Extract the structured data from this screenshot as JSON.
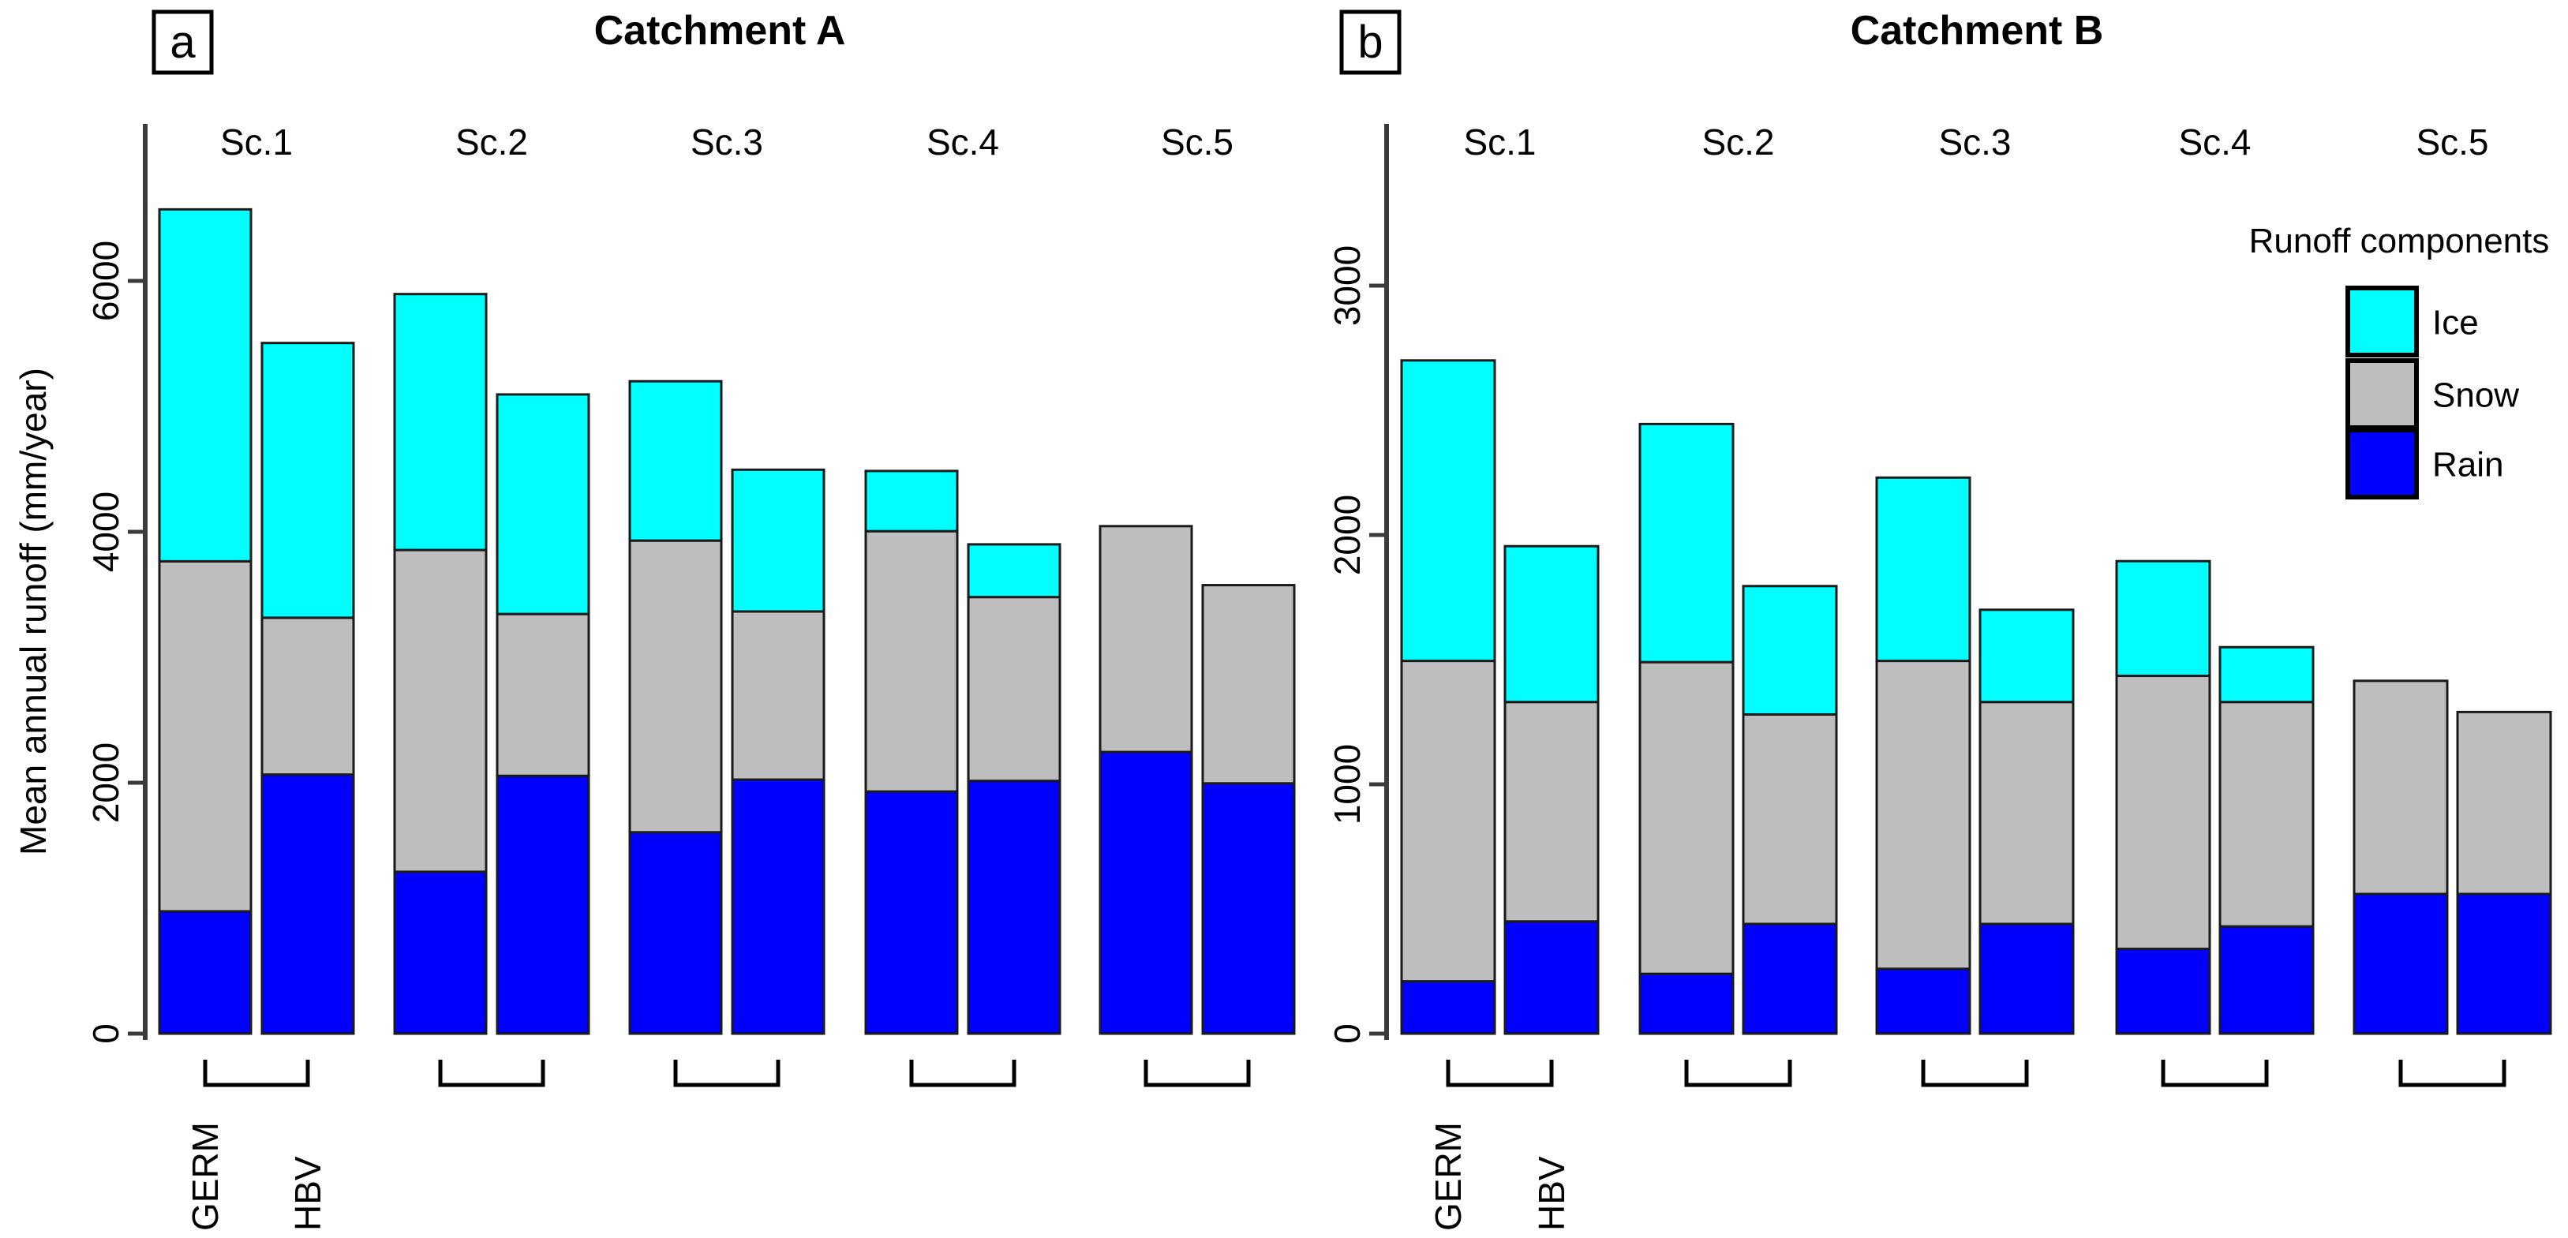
{
  "legend": {
    "title": "Runoff components",
    "items": [
      {
        "label": "Ice",
        "color": "#00ffff"
      },
      {
        "label": "Snow",
        "color": "#bebebe"
      },
      {
        "label": "Rain",
        "color": "#0000ff"
      }
    ]
  },
  "colors": {
    "ice": "#00ffff",
    "snow": "#bebebe",
    "rain": "#0000ff",
    "outline": "#1a1a1a",
    "axis": "#3a3a3a",
    "text": "#000000",
    "background": "#ffffff"
  },
  "chart_data": [
    {
      "type": "bar",
      "stacked": true,
      "panel_letter": "a",
      "title": "Catchment A",
      "ylabel": "Mean annual runoff (mm/year)",
      "ylim": [
        0,
        7250
      ],
      "yticks": [
        0,
        2000,
        4000,
        6000
      ],
      "grid": false,
      "legend_position": "none",
      "scenarios": [
        "Sc.1",
        "Sc.2",
        "Sc.3",
        "Sc.4",
        "Sc.5"
      ],
      "models": [
        "GERM",
        "HBV"
      ],
      "bar_labels": [
        "Sc.1 GERM",
        "Sc.1 HBV",
        "Sc.2 GERM",
        "Sc.2 HBV",
        "Sc.3 GERM",
        "Sc.3 HBV",
        "Sc.4 GERM",
        "Sc.4 HBV",
        "Sc.5 GERM",
        "Sc.5 HBV"
      ],
      "series": [
        {
          "name": "Rain",
          "color": "#0000ff",
          "values": [
            975,
            2065,
            1290,
            2055,
            1605,
            2025,
            1930,
            2015,
            2245,
            1995
          ]
        },
        {
          "name": "Snow",
          "color": "#bebebe",
          "values": [
            2790,
            1250,
            2565,
            1290,
            2325,
            1340,
            2075,
            1465,
            1800,
            1580
          ]
        },
        {
          "name": "Ice",
          "color": "#00ffff",
          "values": [
            2805,
            2190,
            2040,
            1750,
            1270,
            1130,
            480,
            420,
            0,
            0
          ]
        }
      ],
      "totals": [
        6570,
        5505,
        5895,
        5095,
        5200,
        4495,
        4485,
        3900,
        4045,
        3575
      ]
    },
    {
      "type": "bar",
      "stacked": true,
      "panel_letter": "b",
      "title": "Catchment B",
      "ylabel": "",
      "ylim": [
        0,
        3650
      ],
      "yticks": [
        0,
        1000,
        2000,
        3000
      ],
      "grid": false,
      "legend_position": "top-right",
      "scenarios": [
        "Sc.1",
        "Sc.2",
        "Sc.3",
        "Sc.4",
        "Sc.5"
      ],
      "models": [
        "GERM",
        "HBV"
      ],
      "bar_labels": [
        "Sc.1 GERM",
        "Sc.1 HBV",
        "Sc.2 GERM",
        "Sc.2 HBV",
        "Sc.3 GERM",
        "Sc.3 HBV",
        "Sc.4 GERM",
        "Sc.4 HBV",
        "Sc.5 GERM",
        "Sc.5 HBV"
      ],
      "series": [
        {
          "name": "Rain",
          "color": "#0000ff",
          "values": [
            210,
            450,
            240,
            440,
            260,
            440,
            340,
            430,
            560,
            560
          ]
        },
        {
          "name": "Snow",
          "color": "#bebebe",
          "values": [
            1285,
            880,
            1250,
            840,
            1235,
            890,
            1095,
            900,
            855,
            730
          ]
        },
        {
          "name": "Ice",
          "color": "#00ffff",
          "values": [
            1205,
            625,
            955,
            515,
            735,
            370,
            460,
            220,
            0,
            0
          ]
        }
      ],
      "totals": [
        2700,
        1955,
        2445,
        1795,
        2230,
        1700,
        1895,
        1550,
        1415,
        1290
      ]
    }
  ]
}
